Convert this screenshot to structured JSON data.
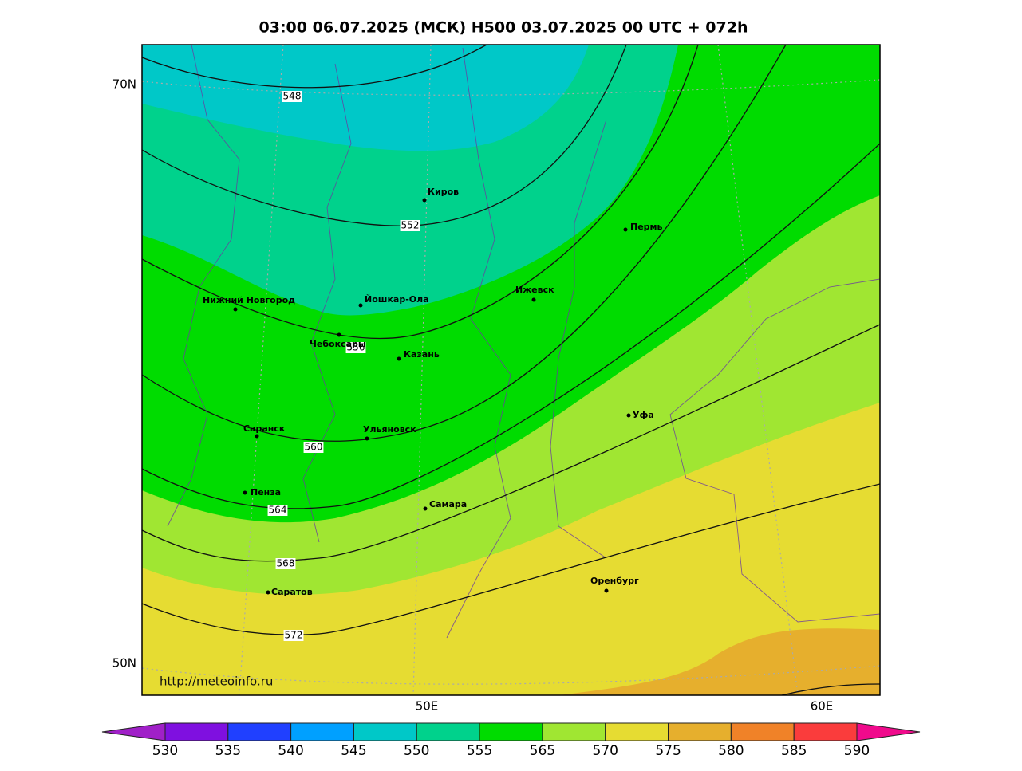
{
  "title": "03:00 06.07.2025 (МСК) H500  03.07.2025 00 UTC + 072h",
  "lat_labels": [
    "70N",
    "50N"
  ],
  "lon_labels": [
    "50E",
    "60E"
  ],
  "watermark": "http://meteoinfo.ru",
  "cities": [
    "Киров",
    "Пермь",
    "Йошкар-Ола",
    "Ижевск",
    "Нижний Новгород",
    "Чебоксары",
    "Казань",
    "Уфа",
    "Саранск",
    "Ульяновск",
    "Пенза",
    "Самара",
    "Саратов",
    "Оренбург"
  ],
  "contour_labels": [
    "548",
    "552",
    "556",
    "560",
    "564",
    "568",
    "572"
  ],
  "colorbar": {
    "labels": [
      530,
      535,
      540,
      545,
      550,
      555,
      565,
      570,
      575,
      580,
      585,
      590
    ],
    "colors": [
      "#a020c8",
      "#7f10e0",
      "#2040ff",
      "#00a0ff",
      "#00c8c8",
      "#00d28c",
      "#00dc00",
      "#a0e632",
      "#e6dc32",
      "#e6af2d",
      "#f08228",
      "#fa3c3c",
      "#f00a8c"
    ]
  }
}
